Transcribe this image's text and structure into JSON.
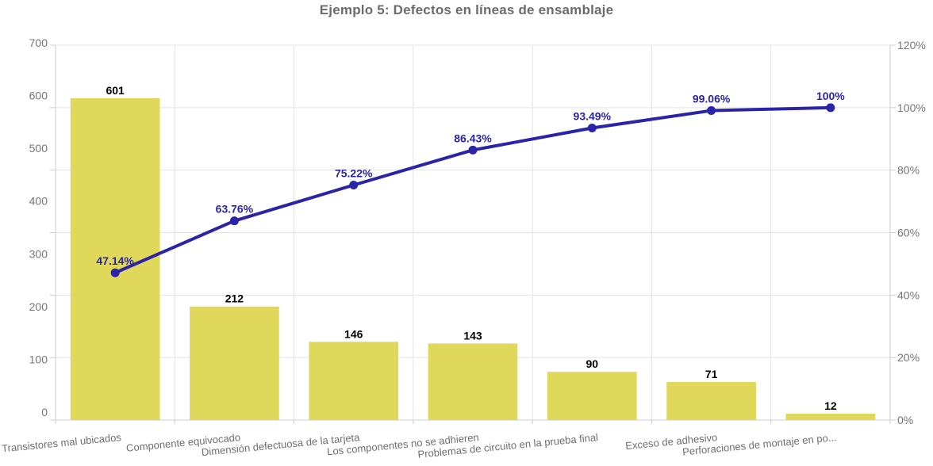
{
  "chart_data": {
    "type": "pareto",
    "title": "Ejemplo 5: Defectos en líneas de ensamblaje",
    "categories": [
      "Transistores mal ubicados",
      "Componente equivocado",
      "Dimensión defectuosa de la tarjeta",
      "Los componentes no se adhieren",
      "Problemas de circuito en la prueba final",
      "Exceso de adhesivo",
      "Perforaciones de montaje en po..."
    ],
    "series": [
      {
        "name": "defect-counts",
        "type": "bar",
        "values": [
          601,
          212,
          146,
          143,
          90,
          71,
          12
        ],
        "labels": [
          "601",
          "212",
          "146",
          "143",
          "90",
          "71",
          "12"
        ],
        "color": "#e0d85a",
        "label_color": "#000000"
      },
      {
        "name": "cumulative-percent",
        "type": "line",
        "values": [
          47.14,
          63.76,
          75.22,
          86.43,
          93.49,
          99.06,
          100
        ],
        "labels": [
          "47.14%",
          "63.76%",
          "75.22%",
          "86.43%",
          "93.49%",
          "99.06%",
          "100%"
        ],
        "color": "#2b23a8",
        "label_color": "#2b23a8"
      }
    ],
    "y_left": {
      "min": 0,
      "max": 700,
      "tick_labels": [
        "0",
        "100",
        "200",
        "300",
        "400",
        "500",
        "600",
        "700"
      ]
    },
    "y_right": {
      "min": 0,
      "max": 120,
      "tick_labels": [
        "0%",
        "20%",
        "40%",
        "60%",
        "80%",
        "100%",
        "120%"
      ]
    },
    "grid": true,
    "legend": "none",
    "colors": {
      "axis_line": "#cccccc",
      "gridline": "#e3e3e3",
      "axis_text": "#757575",
      "category_text": "#6e6e6e",
      "title_text": "#6b6b6b",
      "background": "#ffffff"
    }
  }
}
